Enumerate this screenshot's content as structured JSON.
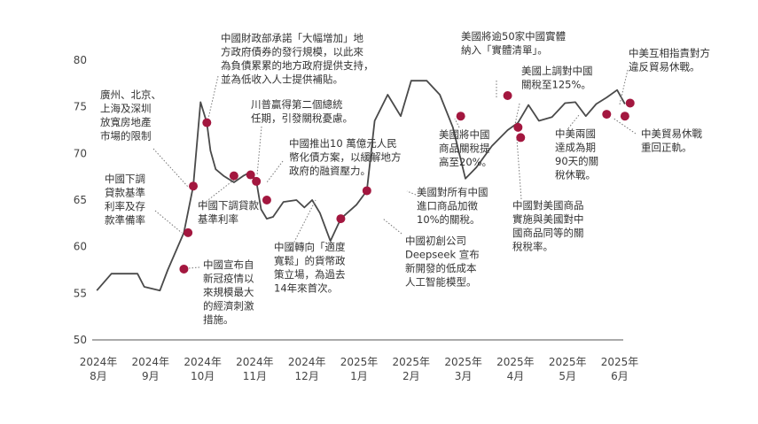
{
  "chart_data": {
    "type": "line",
    "title": "",
    "xlabel": "",
    "ylabel": "",
    "ylim": [
      50,
      80
    ],
    "yticks": [
      50,
      55,
      60,
      65,
      70,
      75,
      80
    ],
    "grid": false,
    "x_tick_labels": [
      {
        "year": "2024年",
        "month": "8月",
        "t": 0
      },
      {
        "year": "2024年",
        "month": "9月",
        "t": 1
      },
      {
        "year": "2024年",
        "month": "10月",
        "t": 2
      },
      {
        "year": "2024年",
        "month": "11月",
        "t": 3
      },
      {
        "year": "2024年",
        "month": "12月",
        "t": 4
      },
      {
        "year": "2025年",
        "month": "1月",
        "t": 5
      },
      {
        "year": "2025年",
        "month": "2月",
        "t": 6
      },
      {
        "year": "2025年",
        "month": "3月",
        "t": 7
      },
      {
        "year": "2025年",
        "month": "4月",
        "t": 8
      },
      {
        "year": "2025年",
        "month": "5月",
        "t": 9
      },
      {
        "year": "2025年",
        "month": "6月",
        "t": 10
      }
    ],
    "series": [
      {
        "line_color": "#4a4a4a",
        "x": [
          -0.03,
          0.25,
          0.5,
          0.75,
          0.88,
          1.18,
          1.33,
          1.64,
          1.82,
          1.96,
          2.08,
          2.15,
          2.25,
          2.4,
          2.6,
          2.78,
          2.92,
          3.03,
          3.12,
          3.23,
          3.35,
          3.55,
          3.8,
          3.95,
          4.1,
          4.25,
          4.45,
          4.65,
          4.95,
          5.15,
          5.3,
          5.55,
          5.8,
          6.0,
          6.3,
          6.55,
          6.8,
          7.04,
          7.25,
          7.55,
          7.85,
          8.05,
          8.25,
          8.45,
          8.7,
          8.95,
          9.15,
          9.35,
          9.55,
          9.75,
          9.95,
          10.1
        ],
        "values": [
          55.3,
          57.1,
          57.1,
          57.1,
          55.7,
          55.3,
          57.5,
          61.5,
          66.5,
          75.5,
          73.3,
          70.3,
          68.3,
          67.6,
          66.9,
          67.6,
          68.0,
          67.0,
          64.0,
          63.0,
          63.2,
          64.8,
          65.0,
          64.2,
          65.0,
          63.6,
          60.6,
          63.0,
          64.5,
          66.0,
          73.5,
          76.3,
          74.0,
          77.8,
          77.8,
          76.3,
          72.8,
          67.3,
          68.5,
          70.8,
          72.5,
          73.3,
          75.2,
          73.5,
          73.9,
          75.4,
          75.5,
          74.0,
          75.3,
          76.0,
          76.8,
          75.3
        ]
      }
    ],
    "markers": [
      {
        "t": 1.64,
        "v": 57.6
      },
      {
        "t": 1.72,
        "v": 61.5
      },
      {
        "t": 1.82,
        "v": 66.5
      },
      {
        "t": 2.08,
        "v": 73.3
      },
      {
        "t": 2.6,
        "v": 67.6
      },
      {
        "t": 2.92,
        "v": 67.7
      },
      {
        "t": 3.03,
        "v": 67.0
      },
      {
        "t": 3.23,
        "v": 65.0
      },
      {
        "t": 4.65,
        "v": 63.0
      },
      {
        "t": 5.15,
        "v": 66.0
      },
      {
        "t": 6.95,
        "v": 74.0
      },
      {
        "t": 7.85,
        "v": 76.2
      },
      {
        "t": 8.05,
        "v": 72.8
      },
      {
        "t": 8.1,
        "v": 71.7
      },
      {
        "t": 9.75,
        "v": 74.2
      },
      {
        "t": 10.1,
        "v": 74.0
      },
      {
        "t": 10.2,
        "v": 75.4
      }
    ],
    "marker_color": "#a3173f",
    "annotations": [
      {
        "lines": [
          "廣州、北京、",
          "上海及深圳",
          "放寬房地產",
          "市場的限制"
        ]
      },
      {
        "lines": [
          "中國下調",
          "貸款基準",
          "利率及存",
          "款準備率"
        ]
      },
      {
        "lines": [
          "中國宣布自",
          "新冠疫情以",
          "來規模最大",
          "的經濟刺激",
          "措施。"
        ]
      },
      {
        "lines": [
          "中國財政部承諾「大幅增加」地",
          "方政府債券的發行規模，以此來",
          "為負債累累的地方政府提供支持，",
          "並為低收入人士提供補貼。"
        ]
      },
      {
        "lines": [
          "中國下調貸款",
          "基準利率"
        ]
      },
      {
        "lines": [
          "川普贏得第二個總統",
          "任期，引發關稅憂慮。"
        ]
      },
      {
        "lines": [
          "中國推出10 萬億元人民",
          "幣化債方案，以緩解地方",
          "政府的融資壓力。"
        ]
      },
      {
        "lines": [
          "中國轉向「適度",
          "寬鬆」的貨幣政",
          "策立場，為過去",
          "14年來首次。"
        ]
      },
      {
        "lines": [
          "中國初創公司",
          "Deepseek 宣布",
          "新開發的低成本",
          "人工智能模型。"
        ]
      },
      {
        "lines": [
          "美國對所有中國",
          "進口商品加徵",
          "10%的關稅。"
        ]
      },
      {
        "lines": [
          "美國將中國",
          "商品關稅提",
          "高至20%。"
        ]
      },
      {
        "lines": [
          "美國將逾50家中國實體",
          "納入「實體清單」。"
        ]
      },
      {
        "lines": [
          "美國上調對中國",
          "關稅至125%。"
        ]
      },
      {
        "lines": [
          "中國對美國商品",
          "實施與美國對中",
          "國商品同等的關",
          "稅稅率。"
        ]
      },
      {
        "lines": [
          "中美兩國",
          "達成為期",
          "90天的關",
          "稅休戰。"
        ]
      },
      {
        "lines": [
          "中美互相指責對方",
          "違反貿易休戰。"
        ]
      },
      {
        "lines": [
          "中美貿易休戰",
          "重回正軌。"
        ]
      }
    ]
  }
}
